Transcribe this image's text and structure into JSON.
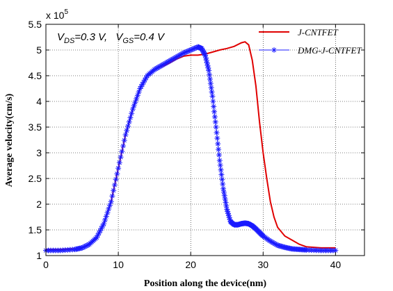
{
  "chart_data": {
    "type": "line",
    "xlabel": "Position along the device(nm)",
    "ylabel": "Average velocity(cm/s)",
    "y_multiplier": "x 10",
    "y_multiplier_exp": "5",
    "xlim": [
      0,
      44
    ],
    "ylim": [
      1,
      5.5
    ],
    "xticks": [
      0,
      10,
      20,
      30,
      40
    ],
    "yticks": [
      1,
      1.5,
      2,
      2.5,
      3,
      3.5,
      4,
      4.5,
      5,
      5.5
    ],
    "xtick_labels": [
      "0",
      "10",
      "20",
      "30",
      "40"
    ],
    "ytick_labels": [
      "1",
      "1.5",
      "2",
      "2.5",
      "3",
      "3.5",
      "4",
      "4.5",
      "5",
      "5.5"
    ],
    "grid": true,
    "legend_position": "top-right",
    "annotation": {
      "v1": "V",
      "v1_sub": "DS",
      "v1_val": "=0.3 V,",
      "v2": "V",
      "v2_sub": "GS",
      "v2_val": "=0.4 V"
    },
    "series": [
      {
        "name": "J-CNTFET",
        "color": "#e00000",
        "marker": "none",
        "x": [
          0,
          2,
          4,
          5,
          6,
          7,
          8,
          9,
          10,
          11,
          12,
          13,
          14,
          15,
          16,
          17,
          18,
          19,
          20,
          21,
          22,
          23,
          24,
          25,
          26,
          27,
          27.5,
          28,
          28.5,
          29,
          29.5,
          30,
          30.5,
          31,
          31.5,
          32,
          33,
          34,
          35,
          36,
          38,
          40
        ],
        "values": [
          1.12,
          1.12,
          1.13,
          1.16,
          1.22,
          1.35,
          1.62,
          2.05,
          2.7,
          3.35,
          3.85,
          4.25,
          4.5,
          4.62,
          4.68,
          4.74,
          4.82,
          4.88,
          4.9,
          4.9,
          4.92,
          4.96,
          5.0,
          5.03,
          5.07,
          5.14,
          5.16,
          5.1,
          4.8,
          4.3,
          3.6,
          3.0,
          2.5,
          2.05,
          1.75,
          1.55,
          1.38,
          1.3,
          1.22,
          1.17,
          1.15,
          1.15
        ]
      },
      {
        "name": "DMG-J-CNTFET",
        "color": "#1a1aff",
        "marker": "asterisk",
        "x": [
          0,
          2,
          4,
          5,
          6,
          7,
          8,
          9,
          10,
          11,
          12,
          13,
          14,
          15,
          16,
          17,
          18,
          19,
          20,
          21,
          21.5,
          22,
          22.5,
          23,
          23.5,
          24,
          24.5,
          25,
          25.5,
          26,
          26.5,
          27,
          27.5,
          28,
          28.5,
          29,
          29.5,
          30,
          31,
          32,
          33,
          34,
          35,
          36,
          38,
          40
        ],
        "values": [
          1.1,
          1.1,
          1.12,
          1.15,
          1.22,
          1.35,
          1.62,
          2.05,
          2.7,
          3.35,
          3.85,
          4.25,
          4.5,
          4.62,
          4.7,
          4.78,
          4.86,
          4.94,
          5.0,
          5.06,
          5.03,
          4.9,
          4.6,
          4.1,
          3.5,
          2.85,
          2.3,
          1.9,
          1.66,
          1.6,
          1.6,
          1.62,
          1.63,
          1.62,
          1.58,
          1.52,
          1.45,
          1.38,
          1.28,
          1.2,
          1.16,
          1.13,
          1.12,
          1.11,
          1.1,
          1.1
        ]
      }
    ]
  }
}
